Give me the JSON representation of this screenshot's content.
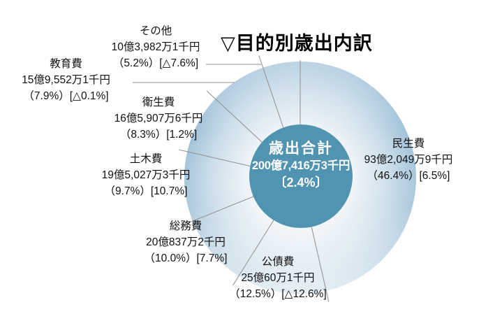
{
  "title": "▽目的別歳出内訳",
  "chart_data": {
    "type": "pie",
    "title": "目的別歳出内訳",
    "direction": "clockwise",
    "start_angle_deg_from_top": 0,
    "total": {
      "label": "歳出合計",
      "amount": "200億7,416万3千円",
      "change": "〔2.4%〕"
    },
    "slices": [
      {
        "name": "民生費",
        "amount": "93億2,049万9千円",
        "percent": 46.4,
        "pct_label": "（46.4%）[6.5%]"
      },
      {
        "name": "公債費",
        "amount": "25億60万1千円",
        "percent": 12.5,
        "pct_label": "（12.5%）[△12.6%]"
      },
      {
        "name": "総務費",
        "amount": "20億837万2千円",
        "percent": 10.0,
        "pct_label": "（10.0%）[7.7%]"
      },
      {
        "name": "土木費",
        "amount": "19億5,027万3千円",
        "percent": 9.7,
        "pct_label": "（9.7%）[10.7%]"
      },
      {
        "name": "衛生費",
        "amount": "16億5,907万6千円",
        "percent": 8.3,
        "pct_label": "（8.3%）[1.2%]"
      },
      {
        "name": "教育費",
        "amount": "15億9,552万1千円",
        "percent": 7.9,
        "pct_label": "（7.9%）[△0.1%]"
      },
      {
        "name": "その他",
        "amount": "10億3,982万1千円",
        "percent": 5.2,
        "pct_label": "（5.2%）[△7.6%]"
      }
    ],
    "colors": {
      "center_circle": "#5094b1",
      "ring_outer": "#a2c2d8",
      "ring_mid": "#cddfeb",
      "ring_inner": "#eef3f7",
      "divider": "#8f8f8f",
      "center_text": "#ffffff"
    }
  }
}
